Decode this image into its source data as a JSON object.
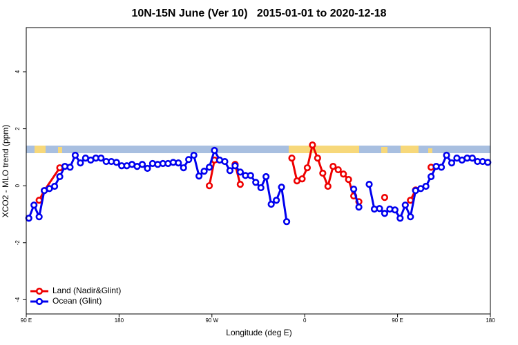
{
  "chart_data": {
    "type": "line",
    "title": "10N-15N June (Ver 10)   2015-01-01 to 2020-12-18",
    "x_label": "Longitude (deg E)",
    "y_label": "XCO2 - MLO trend (ppm)",
    "xlim": [
      90,
      540
    ],
    "ylim": [
      -4.5,
      5.55
    ],
    "xticks": [
      {
        "value": 90,
        "label": "90 E"
      },
      180,
      {
        "value": 270,
        "label": "90 W"
      },
      {
        "value": 360,
        "label": "0"
      },
      {
        "value": 450,
        "label": "90 E"
      },
      {
        "value": 540,
        "label": "180"
      }
    ],
    "yticks": [
      -4,
      -2,
      0,
      2,
      4
    ],
    "legend": "bottom-left",
    "series": [
      {
        "name": "Land (Nadir&Glint)",
        "color": "#ee0000",
        "x": [
          102.5,
          107.5,
          122.5,
          127.5,
          267.5,
          272.5,
          277.5,
          292.5,
          297.5,
          302.5,
          347.5,
          352.5,
          357.5,
          362.5,
          367.5,
          372.5,
          377.5,
          382.5,
          387.5,
          392.5,
          397.5,
          402.5,
          407.5,
          412.5,
          417.5,
          437.5,
          442.5,
          462.5,
          467.5,
          472.5,
          482.5
        ],
        "values": [
          -0.51,
          -0.17,
          0.63,
          null,
          0,
          0.9,
          null,
          0.75,
          0.05,
          null,
          0.97,
          0.17,
          0.24,
          0.63,
          1.43,
          0.97,
          0.44,
          -0.02,
          0.68,
          0.56,
          0.41,
          0.22,
          -0.36,
          -0.56,
          null,
          -0.41,
          null,
          -0.51,
          -0.15,
          null,
          0.65
        ]
      },
      {
        "name": "Ocean (Glint)",
        "color": "#0000ee",
        "x": [
          92.5,
          97.5,
          102.5,
          107.5,
          112.5,
          117.5,
          122.5,
          127.5,
          132.5,
          137.5,
          142.5,
          147.5,
          152.5,
          157.5,
          162.5,
          167.5,
          172.5,
          177.5,
          182.5,
          187.5,
          192.5,
          197.5,
          202.5,
          207.5,
          212.5,
          217.5,
          222.5,
          227.5,
          232.5,
          237.5,
          242.5,
          247.5,
          252.5,
          257.5,
          262.5,
          267.5,
          272.5,
          277.5,
          282.5,
          287.5,
          292.5,
          297.5,
          302.5,
          307.5,
          312.5,
          317.5,
          322.5,
          327.5,
          332.5,
          337.5,
          342.5,
          347.5,
          407.5,
          412.5,
          417.5,
          422.5,
          427.5,
          432.5,
          437.5,
          442.5,
          447.5,
          452.5,
          457.5,
          462.5,
          467.5,
          472.5,
          477.5,
          482.5,
          487.5,
          492.5,
          497.5,
          502.5,
          507.5,
          512.5,
          517.5,
          522.5,
          527.5,
          532.5,
          537.5
        ],
        "values": [
          -1.14,
          -0.68,
          -1.09,
          -0.17,
          -0.1,
          -0.02,
          0.32,
          0.68,
          0.65,
          1.07,
          0.8,
          0.97,
          0.9,
          0.97,
          0.97,
          0.85,
          0.85,
          0.82,
          0.7,
          0.7,
          0.75,
          0.68,
          0.75,
          0.61,
          0.78,
          0.75,
          0.78,
          0.78,
          0.82,
          0.8,
          0.63,
          0.92,
          1.07,
          0.34,
          0.51,
          0.65,
          1.24,
          0.9,
          0.85,
          0.53,
          0.7,
          0.48,
          0.36,
          0.36,
          0.12,
          -0.07,
          0.32,
          -0.65,
          -0.51,
          -0.05,
          -1.26,
          null,
          -0.12,
          -0.75,
          null,
          0.05,
          -0.82,
          -0.8,
          -0.97,
          -0.82,
          -0.85,
          -1.14,
          -0.68,
          -1.09,
          -0.17,
          -0.1,
          -0.02,
          0.32,
          0.68,
          0.65,
          1.07,
          0.8,
          0.97,
          0.9,
          0.97,
          0.97,
          0.85,
          0.85,
          0.82
        ]
      }
    ]
  }
}
